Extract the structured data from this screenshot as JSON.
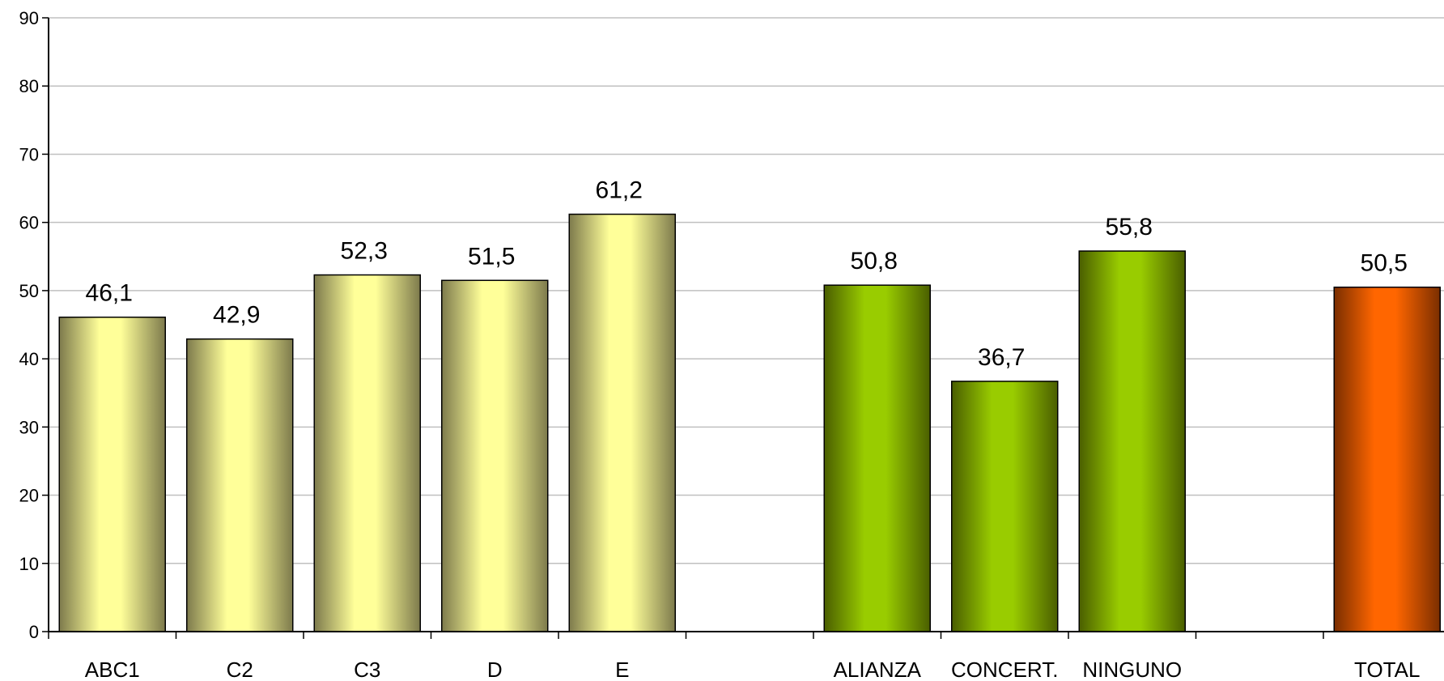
{
  "chart_data": {
    "type": "bar",
    "title": "",
    "xlabel": "",
    "ylabel": "",
    "ylim": [
      0,
      90
    ],
    "yticks": [
      "0",
      "10",
      "20",
      "30",
      "40",
      "50",
      "60",
      "70",
      "80",
      "90"
    ],
    "grid": true,
    "legend": "none",
    "categories": [
      "ABC1",
      "C2",
      "C3",
      "D",
      "E",
      "",
      "ALIANZA",
      "CONCERT.",
      "NINGUNO",
      "",
      "TOTAL"
    ],
    "values": [
      46.1,
      42.9,
      52.3,
      51.5,
      61.2,
      null,
      50.8,
      36.7,
      55.8,
      null,
      50.5
    ],
    "value_labels": [
      "46,1",
      "42,9",
      "52,3",
      "51,5",
      "61,2",
      "",
      "50,8",
      "36,7",
      "55,8",
      "",
      "50,5"
    ],
    "groups": [
      "yellow",
      "yellow",
      "yellow",
      "yellow",
      "yellow",
      "none",
      "green",
      "green",
      "green",
      "none",
      "orange"
    ],
    "colors": {
      "yellow": {
        "edge": "#7d7a4c",
        "center": "#ffff99"
      },
      "green": {
        "edge": "#4a5e00",
        "center": "#99cc00"
      },
      "orange": {
        "edge": "#7a2e00",
        "center": "#ff6600"
      },
      "gridline": "#c0c0c0",
      "axis": "#000000"
    }
  }
}
